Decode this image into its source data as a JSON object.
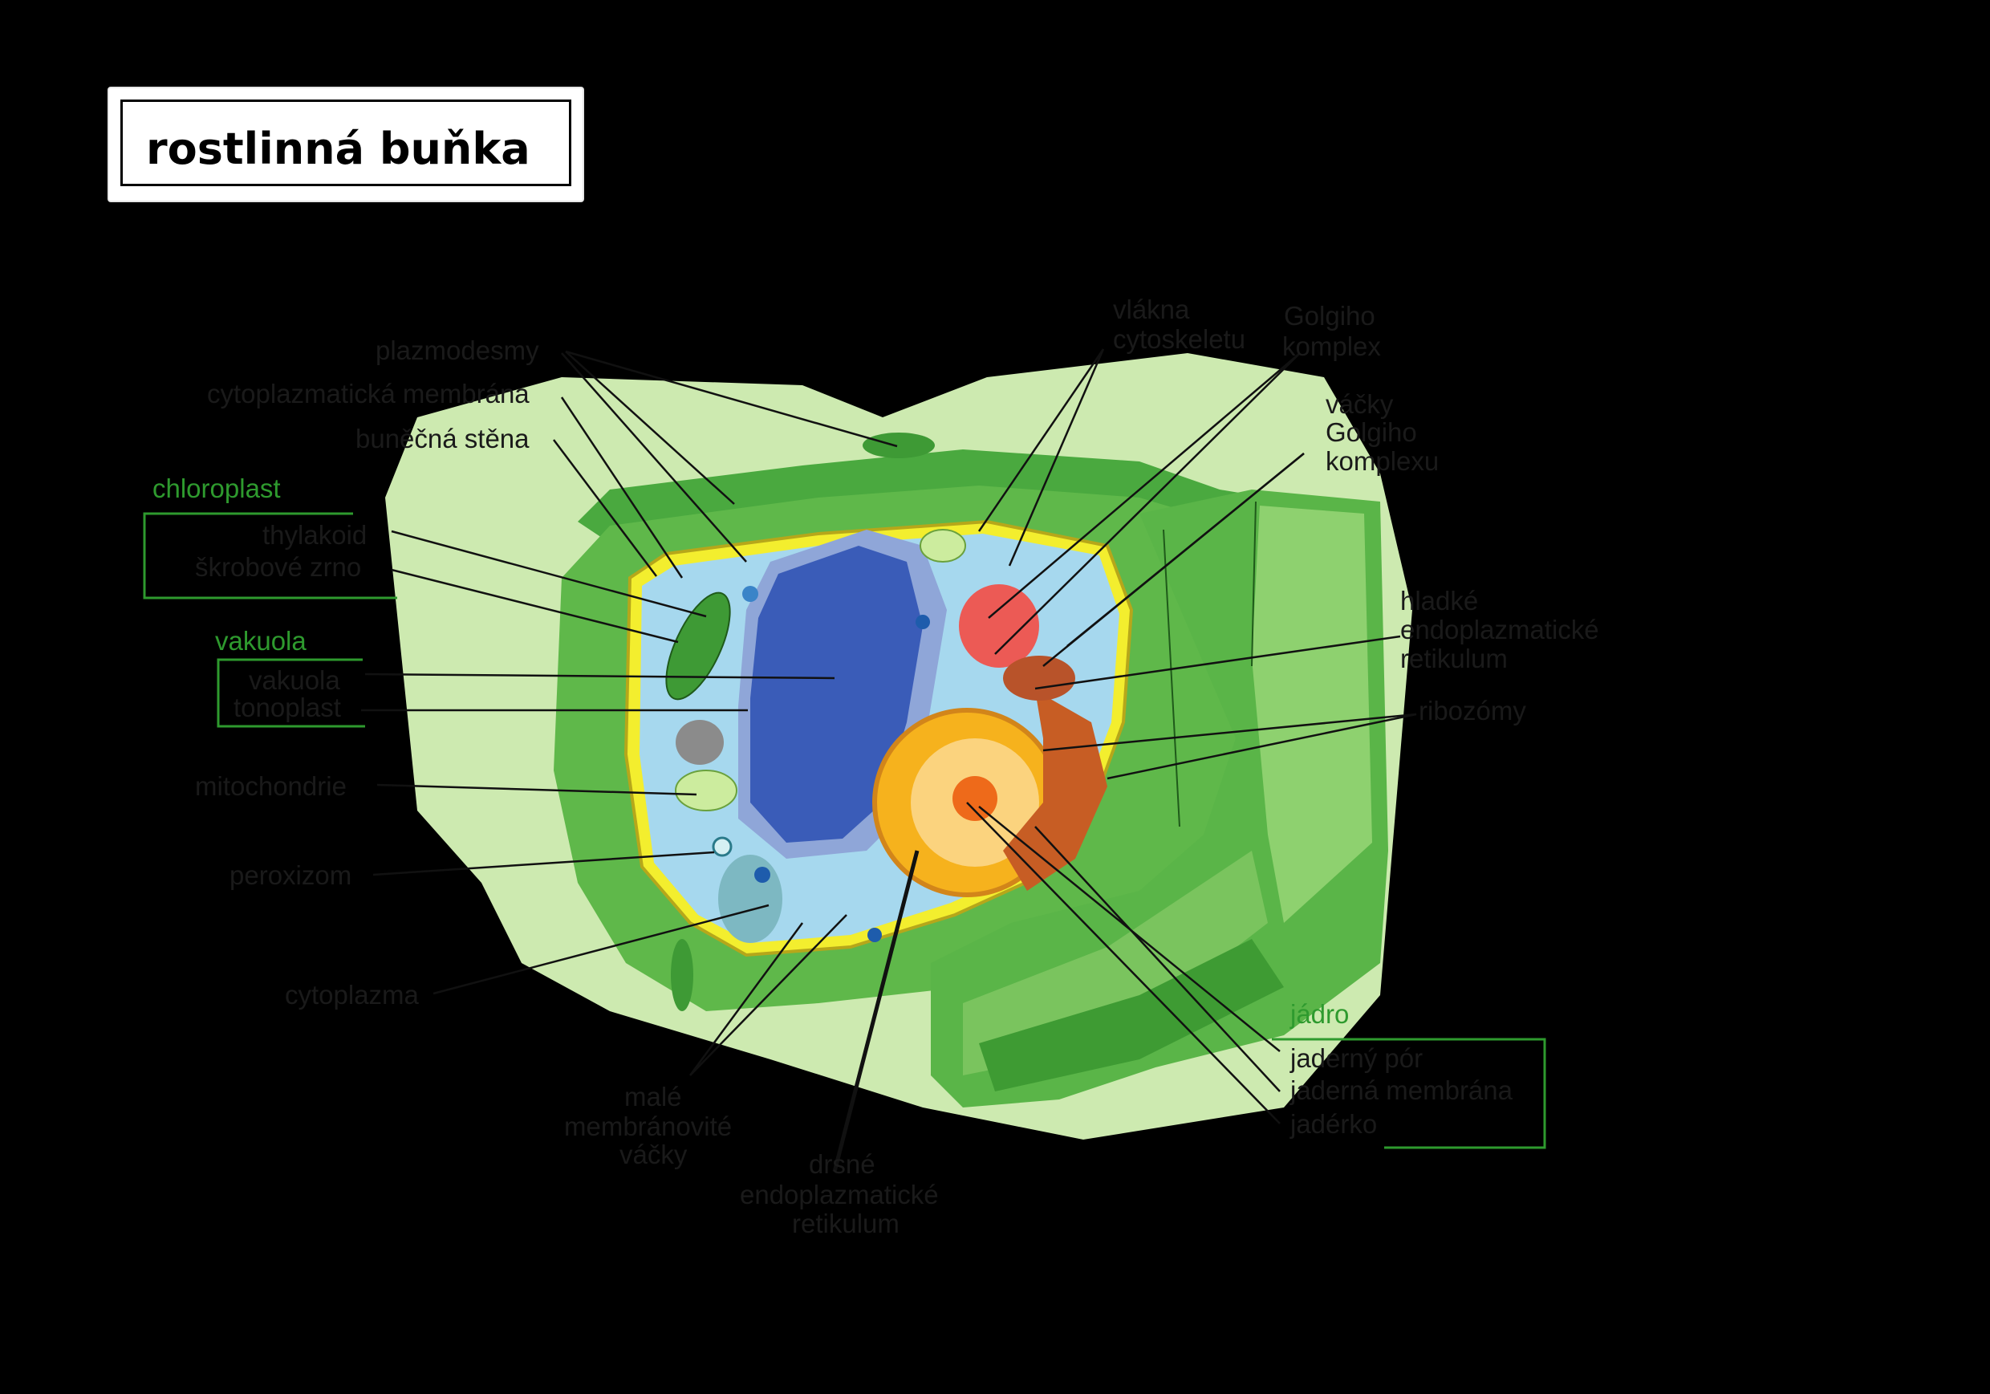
{
  "title": "rostlinná buňka",
  "colors": {
    "background": "#000000",
    "outer_glow": "#cdeab0",
    "cell_wall": "#5fb84a",
    "cell_wall_dark": "#3f9a35",
    "membrane": "#f3ee2e",
    "cytoplasm": "#a6d8ee",
    "vacuole": "#3a5cb8",
    "nucleus": "#f6b21d",
    "golgi": "#ec5a55",
    "group_label": "#2e9a2e"
  },
  "groups": {
    "chloroplast": "chloroplast",
    "vakuola": "vakuola",
    "jadro": "jádro"
  },
  "labels": {
    "plazmodesmy": "plazmodesmy",
    "cytoplazmaticka_membrana": "cytoplazmatická membrána",
    "bunecna_stena": "buněčná stěna",
    "thylakoid": "thylakoid",
    "skrobove_zrno": "škrobové zrno",
    "vakuola": "vakuola",
    "tonoplast": "tonoplast",
    "mitochondrie": "mitochondrie",
    "peroxizom": "peroxizom",
    "cytoplazma": "cytoplazma",
    "male_1": "malé",
    "male_2": "membránovité",
    "male_3": "váčky",
    "drsne_1": "drsné",
    "drsne_2": "endoplazmatické",
    "drsne_3": "retikulum",
    "vlakna_1": "vlákna",
    "vlakna_2": "cytoskeletu",
    "golgi_1": "Golgiho",
    "golgi_2": "komplex",
    "vacky_1": "váčky",
    "vacky_2": "Golgiho",
    "vacky_3": "komplexu",
    "hladke_1": "hladké",
    "hladke_2": "endoplazmatické",
    "hladke_3": "retikulum",
    "ribozomy": "ribozómy",
    "jaderny_por": "jaderný pór",
    "jaderna_membrana": "jaderná membrána",
    "jaderko": "jadérko"
  }
}
